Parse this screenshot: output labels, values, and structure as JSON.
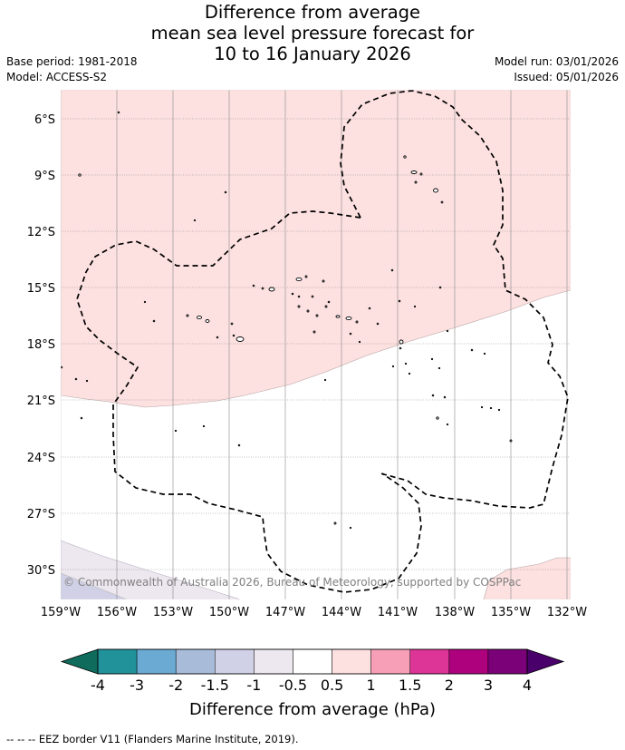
{
  "title": {
    "line1": "Difference from average",
    "line2": "mean sea level pressure forecast for",
    "line3": "10 to 16 January 2026"
  },
  "meta": {
    "base_period": "Base period: 1981-2018",
    "model": "Model: ACCESS-S2",
    "model_run": "Model run: 03/01/2026",
    "issued": "Issued: 05/01/2026"
  },
  "map": {
    "lat_labels": [
      "6°S",
      "9°S",
      "12°S",
      "15°S",
      "18°S",
      "21°S",
      "24°S",
      "27°S",
      "30°S"
    ],
    "lon_labels": [
      "159°W",
      "156°W",
      "153°W",
      "150°W",
      "147°W",
      "144°W",
      "141°W",
      "138°W",
      "135°W",
      "132°W"
    ],
    "copyright": "© Commonwealth of Australia 2026, Bureau of Meteorology, supported by COSPPac"
  },
  "colorbar": {
    "ticks": [
      "-4",
      "-3",
      "-2",
      "-1.5",
      "-1",
      "-0.5",
      "0.5",
      "1",
      "1.5",
      "2",
      "3",
      "4"
    ],
    "label": "Difference from average (hPa)",
    "colors": {
      "under": "#0f6b5b",
      "bins": [
        "#21929a",
        "#6aaad3",
        "#a8bcda",
        "#d0d1e6",
        "#ede7f0",
        "#ffffff",
        "#fde0e0",
        "#f89fb8",
        "#dd3497",
        "#ae017e",
        "#7a0177"
      ],
      "over": "#49006a"
    }
  },
  "footer": {
    "legend_symbol": "--  --  --",
    "legend_text": "EEZ border V11 (Flanders Marine Institute, 2019)."
  }
}
